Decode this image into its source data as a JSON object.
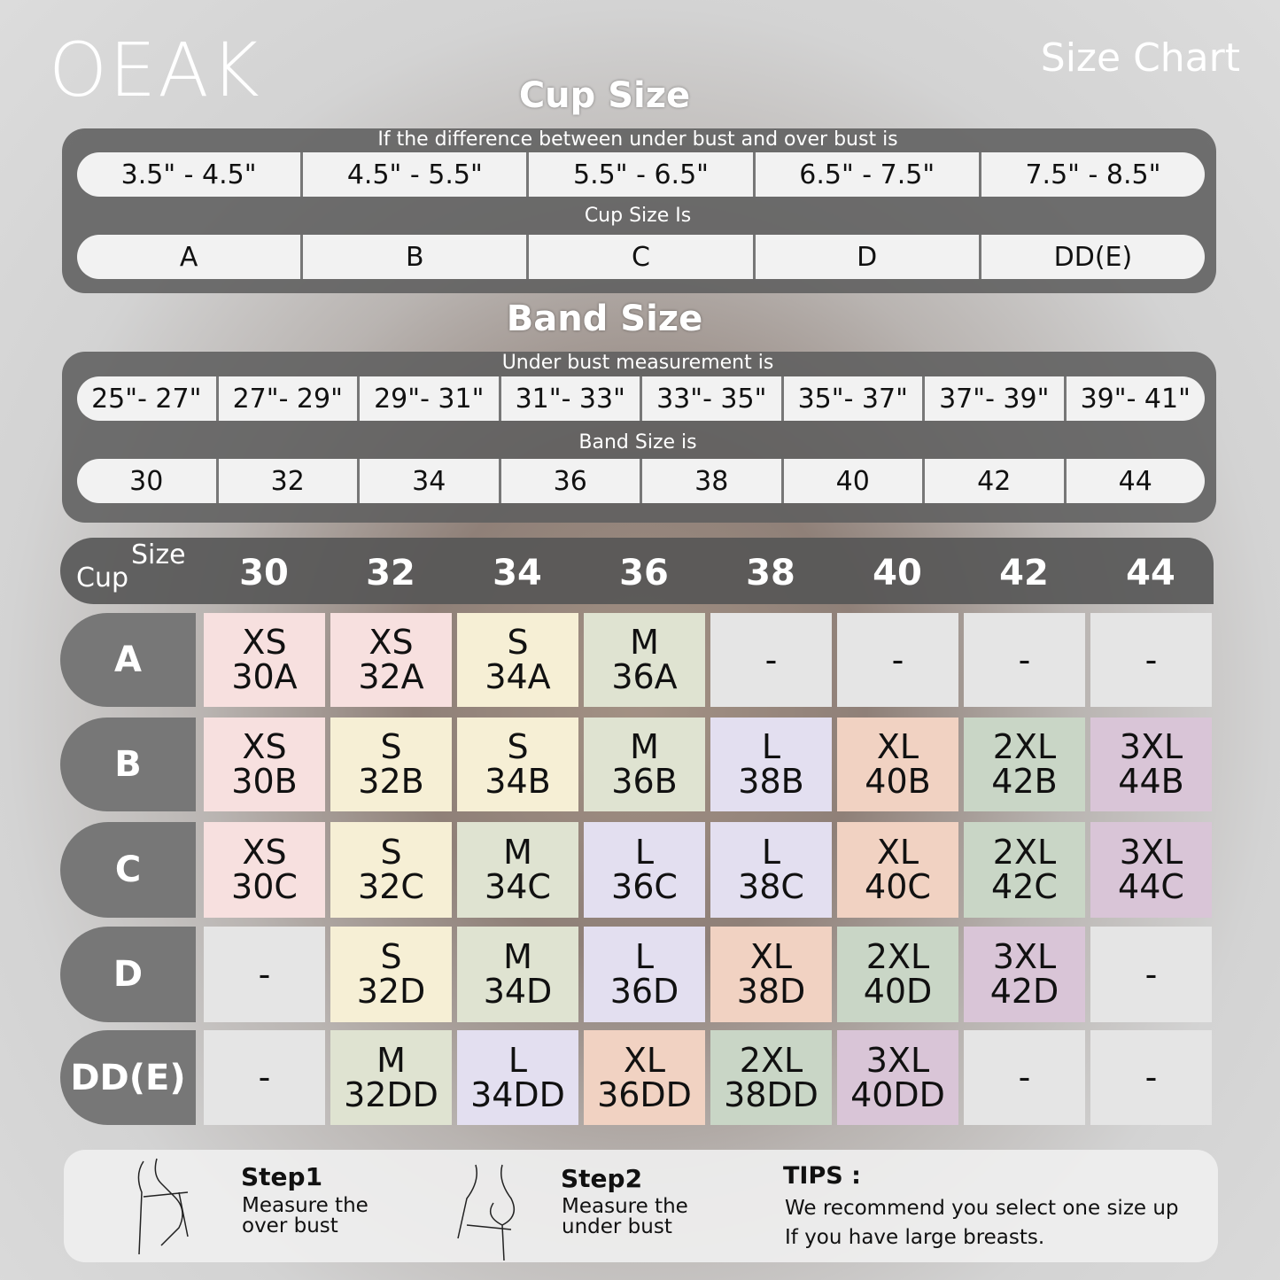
{
  "brand": "OEAK",
  "title": "Size Chart",
  "cup_section": {
    "heading": "Cup Size",
    "diff_label": "If the  difference between under bust and over bust is",
    "ranges": [
      "3.5\" -  4.5\"",
      "4.5\" -  5.5\"",
      "5.5\" -  6.5\"",
      "6.5\" -  7.5\"",
      "7.5\" -  8.5\""
    ],
    "cup_label": "Cup Size Is",
    "cups": [
      "A",
      "B",
      "C",
      "D",
      "DD(E)"
    ]
  },
  "band_section": {
    "heading": "Band Size",
    "under_label": "Under bust measurement is",
    "ranges": [
      "25\"- 27\"",
      "27\"- 29\"",
      "29\"- 31\"",
      "31\"- 33\"",
      "33\"- 35\"",
      "35\"- 37\"",
      "37\"- 39\"",
      "39\"- 41\""
    ],
    "band_label": "Band Size is",
    "bands": [
      "30",
      "32",
      "34",
      "36",
      "38",
      "40",
      "42",
      "44"
    ]
  },
  "grid": {
    "corner_size": "Size",
    "corner_cup": "Cup",
    "columns": [
      "30",
      "32",
      "34",
      "36",
      "38",
      "40",
      "42",
      "44"
    ],
    "colors": {
      "XS": "#f7e0df",
      "S": "#f6efd5",
      "M": "#dfe3d1",
      "L": "#e3dff0",
      "XL": "#f1d2c2",
      "2XL": "#c9d6c6",
      "3XL": "#d9c5d7",
      "-": "#e5e5e5"
    },
    "rows": [
      {
        "cup": "A",
        "cells": [
          [
            "XS",
            "30A"
          ],
          [
            "XS",
            "32A"
          ],
          [
            "S",
            "34A"
          ],
          [
            "M",
            "36A"
          ],
          [
            "-",
            ""
          ],
          [
            "-",
            ""
          ],
          [
            "-",
            ""
          ],
          [
            "-",
            ""
          ]
        ]
      },
      {
        "cup": "B",
        "cells": [
          [
            "XS",
            "30B"
          ],
          [
            "S",
            "32B"
          ],
          [
            "S",
            "34B"
          ],
          [
            "M",
            "36B"
          ],
          [
            "L",
            "38B"
          ],
          [
            "XL",
            "40B"
          ],
          [
            "2XL",
            "42B"
          ],
          [
            "3XL",
            "44B"
          ]
        ]
      },
      {
        "cup": "C",
        "cells": [
          [
            "XS",
            "30C"
          ],
          [
            "S",
            "32C"
          ],
          [
            "M",
            "34C"
          ],
          [
            "L",
            "36C"
          ],
          [
            "L",
            "38C"
          ],
          [
            "XL",
            "40C"
          ],
          [
            "2XL",
            "42C"
          ],
          [
            "3XL",
            "44C"
          ]
        ]
      },
      {
        "cup": "D",
        "cells": [
          [
            "-",
            ""
          ],
          [
            "S",
            "32D"
          ],
          [
            "M",
            "34D"
          ],
          [
            "L",
            "36D"
          ],
          [
            "XL",
            "38D"
          ],
          [
            "2XL",
            "40D"
          ],
          [
            "3XL",
            "42D"
          ],
          [
            "-",
            ""
          ]
        ]
      },
      {
        "cup": "DD(E)",
        "cells": [
          [
            "-",
            ""
          ],
          [
            "M",
            "32DD"
          ],
          [
            "L",
            "34DD"
          ],
          [
            "XL",
            "36DD"
          ],
          [
            "2XL",
            "38DD"
          ],
          [
            "3XL",
            "40DD"
          ],
          [
            "-",
            ""
          ],
          [
            "-",
            ""
          ]
        ]
      }
    ]
  },
  "steps": [
    {
      "title": "Step1",
      "text1": "Measure the",
      "text2": "over bust",
      "icon": "over-bust-figure-icon"
    },
    {
      "title": "Step2",
      "text1": "Measure the",
      "text2": "under bust",
      "icon": "under-bust-figure-icon"
    }
  ],
  "tips": {
    "title": "TIPS :",
    "line1": "We recommend you select one size up",
    "line2": "If you have large breasts."
  }
}
